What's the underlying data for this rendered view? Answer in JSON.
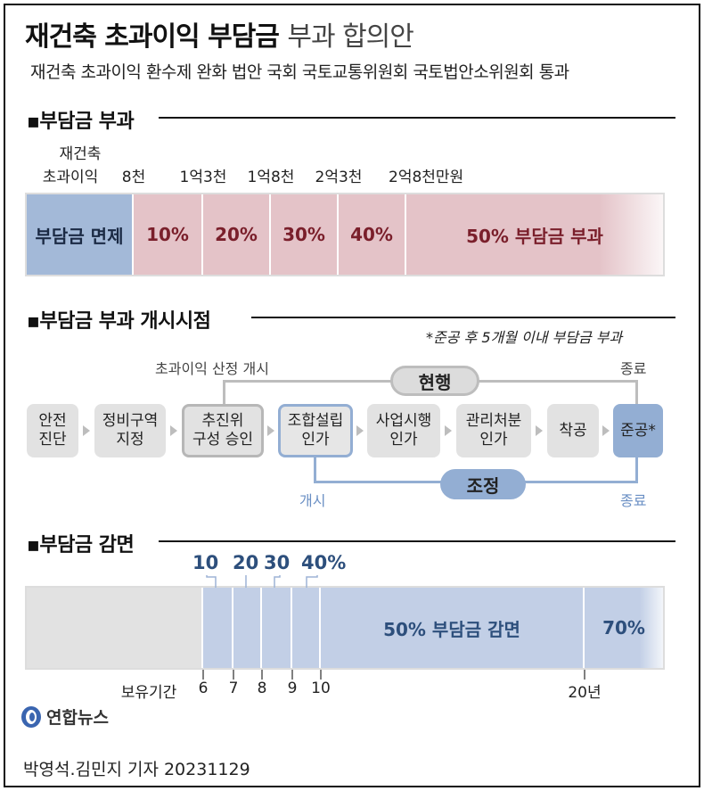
{
  "header": {
    "title_bold": "재건축 초과이익 부담금",
    "title_light": "부과 합의안",
    "subtitle": "재건축 초과이익 환수제 완화 법안 국회 국토교통위원회 국토법안소위원회 통과"
  },
  "chart_data": [
    {
      "type": "bar",
      "title": "▪부담금 부과",
      "axis_label_line1": "재건축",
      "axis_label_line2": "초과이익",
      "tick_labels": [
        "8천",
        "1억3천",
        "1억8천",
        "2억3천",
        "2억8천만원"
      ],
      "segments": [
        {
          "label": "부담금 면제",
          "from": 0,
          "to": 8000
        },
        {
          "label": "10%",
          "from": 8000,
          "to": 13000
        },
        {
          "label": "20%",
          "from": 13000,
          "to": 18000
        },
        {
          "label": "30%",
          "from": 18000,
          "to": 23000
        },
        {
          "label": "40%",
          "from": 23000,
          "to": 28000
        },
        {
          "label": "50% 부담금 부과",
          "from": 28000,
          "to": null
        }
      ]
    },
    {
      "type": "bar",
      "title": "▪부담금 감면",
      "axis_label": "보유기간",
      "tick_labels": [
        "6",
        "7",
        "8",
        "9",
        "10",
        "20년"
      ],
      "top_labels": [
        "10",
        "20",
        "30",
        "40%"
      ],
      "segments": [
        {
          "label": "",
          "from": 0,
          "to": 6
        },
        {
          "label": "10",
          "from": 6,
          "to": 7
        },
        {
          "label": "20",
          "from": 7,
          "to": 8
        },
        {
          "label": "30",
          "from": 8,
          "to": 9
        },
        {
          "label": "40%",
          "from": 9,
          "to": 10
        },
        {
          "label": "50%  부담금 감면",
          "from": 10,
          "to": 20
        },
        {
          "label": "70%",
          "from": 20,
          "to": null
        }
      ]
    }
  ],
  "timeline": {
    "title": "▪부담금 부과 개시시점",
    "note": "*준공 후 5개월 이내 부담금 부과",
    "steps": [
      "안전\n진단",
      "정비구역\n지정",
      "추진위\n구성 승인",
      "조합설립\n인가",
      "사업시행\n인가",
      "관리처분\n인가",
      "착공",
      "준공*"
    ],
    "current": {
      "label": "현행",
      "start": "초과이익 산정 개시",
      "end": "종료"
    },
    "adjusted": {
      "label": "조정",
      "start": "개시",
      "end": "종료"
    }
  },
  "colors": {
    "exempt": "#a3b9d8",
    "levy": "#e4c3c8",
    "levy_text": "#7a1f2b",
    "gray_bar": "#e2e2e2",
    "reduce": "#c2cfe6",
    "reduce_text": "#2d4f7c",
    "current_line": "#bdbdbd",
    "adjusted_line": "#93aed3"
  },
  "footer": {
    "logo_text": "연합뉴스",
    "credit": "박영석.김민지 기자  20231129"
  }
}
